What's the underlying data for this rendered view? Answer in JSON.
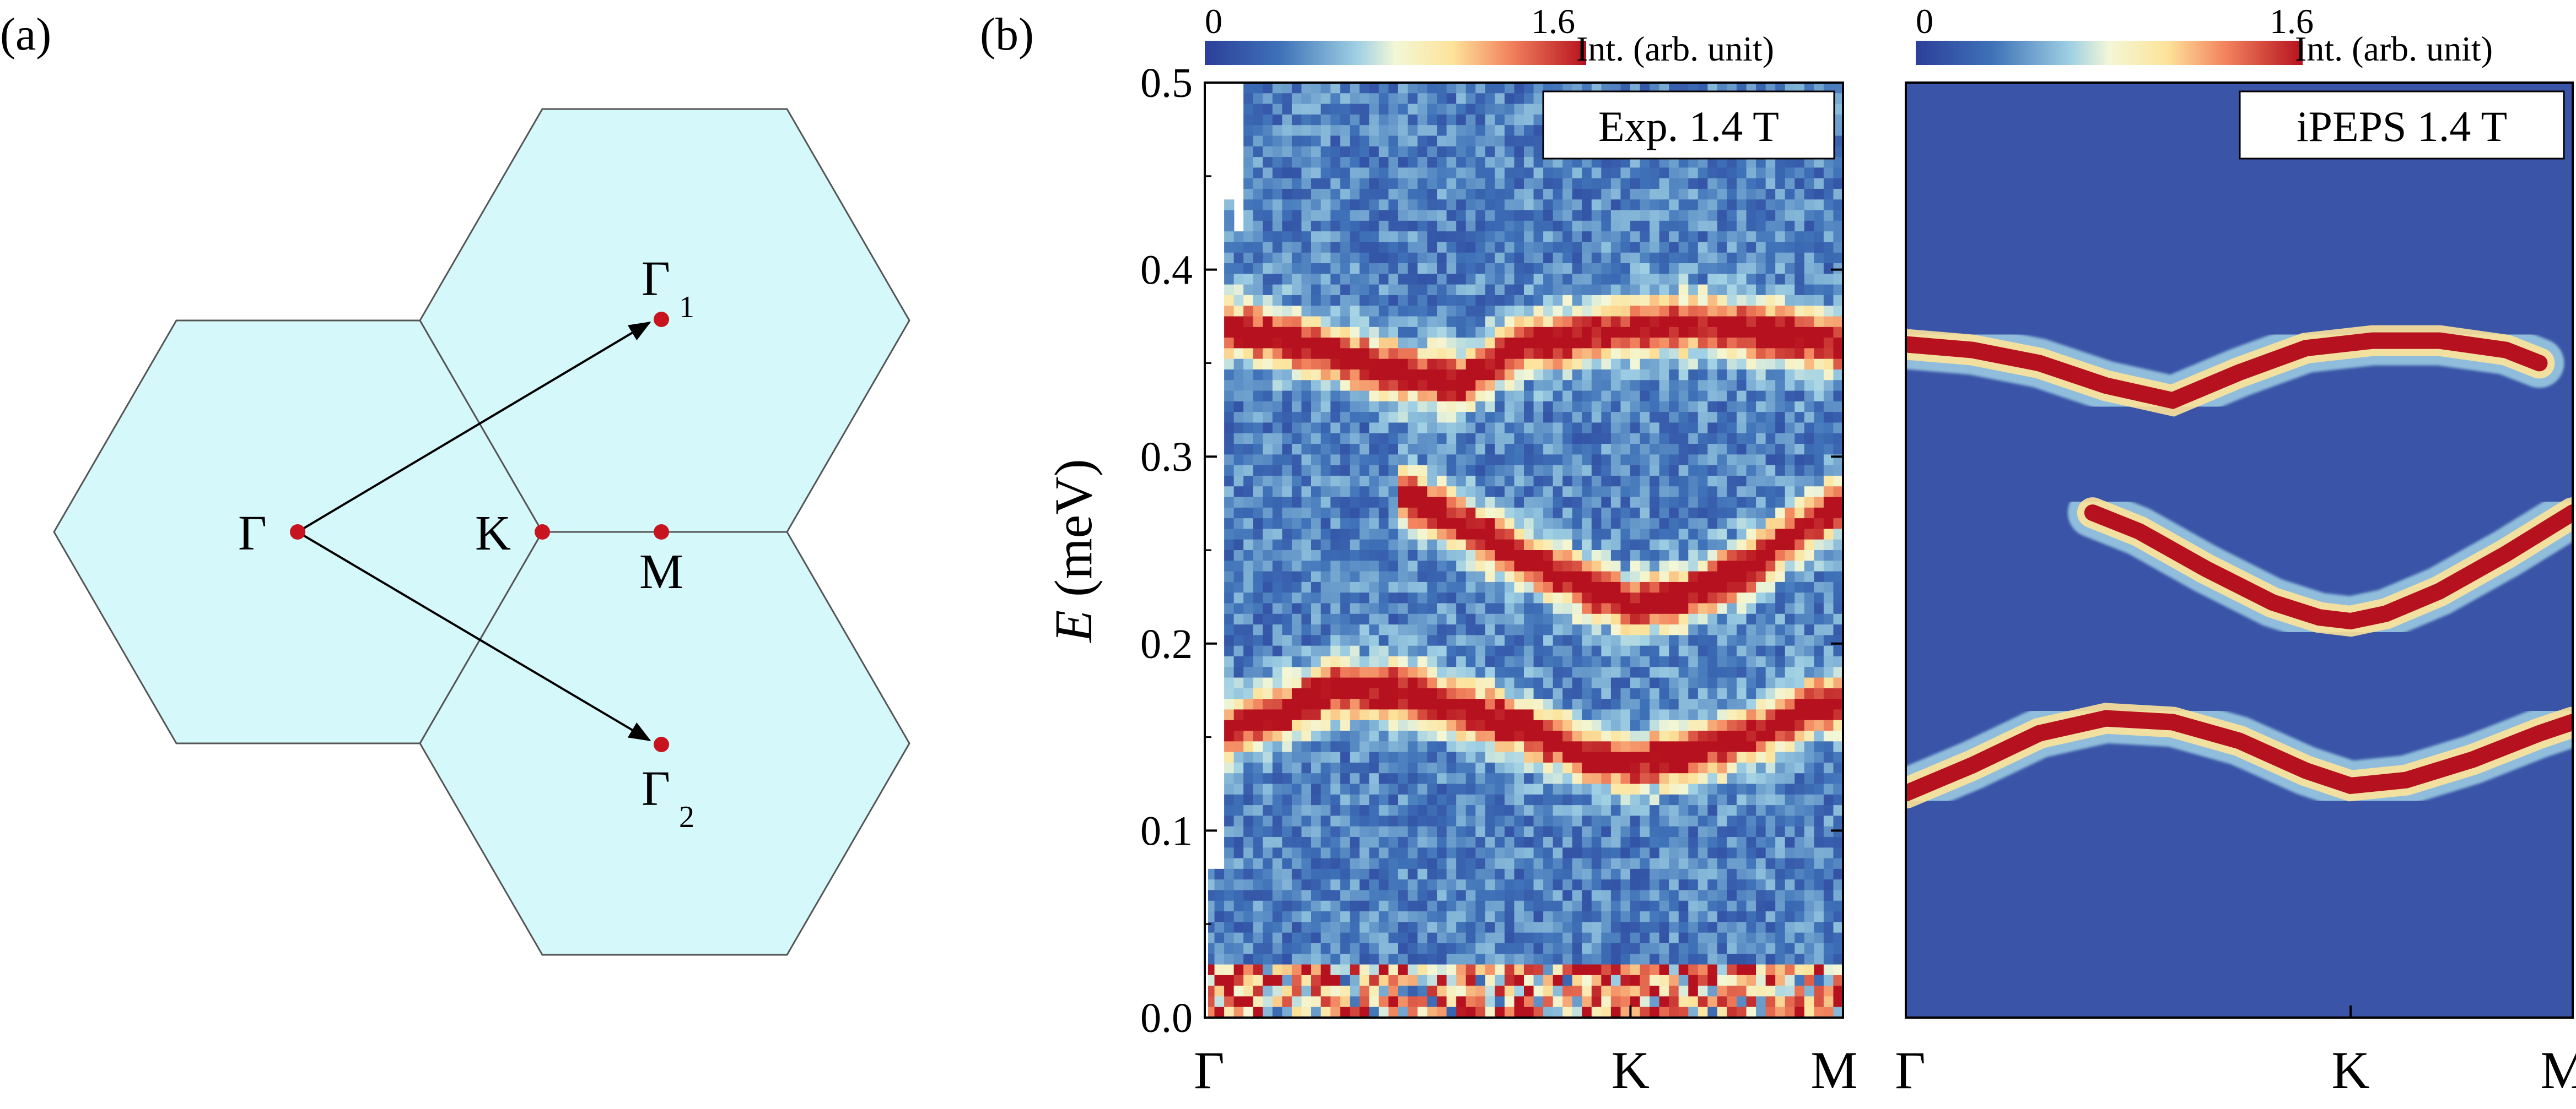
{
  "panel_a": {
    "label": "(a)",
    "points": {
      "gamma": "Γ",
      "k": "K",
      "m": "M",
      "gamma1": "Γ",
      "gamma1_sub": "1",
      "gamma2": "Γ",
      "gamma2_sub": "2"
    },
    "colors": {
      "hex_fill": "#d5f8fb",
      "hex_stroke": "#555555",
      "point": "#c8141e",
      "arrow": "#000000"
    }
  },
  "panel_b": {
    "label": "(b)"
  },
  "chart_data": [
    {
      "type": "heatmap",
      "title": "Exp.  1.4 T",
      "ylabel": "E (meV)",
      "ylabel_italic": "E",
      "ylabel_unit": " (meV)",
      "ylim": [
        0,
        0.5
      ],
      "yticks": [
        "0.0",
        "0.1",
        "0.2",
        "0.3",
        "0.4",
        "0.5"
      ],
      "xticks": [
        "Γ",
        "K",
        "M"
      ],
      "x_positions": [
        0,
        0.667,
        1
      ],
      "colorbar": {
        "min_label": "0",
        "max_label": "1.6",
        "label": "Int. (arb. unit)",
        "range": [
          0,
          1.6
        ]
      },
      "bands": [
        {
          "name": "upper",
          "x": [
            0,
            0.1,
            0.2,
            0.3,
            0.4,
            0.5,
            0.6,
            0.7,
            0.8,
            0.9,
            1.0
          ],
          "energy": [
            0.37,
            0.365,
            0.355,
            0.345,
            0.34,
            0.36,
            0.365,
            0.37,
            0.37,
            0.365,
            0.36
          ]
        },
        {
          "name": "middle",
          "x": [
            0.3,
            0.4,
            0.5,
            0.6,
            0.667,
            0.75,
            0.85,
            0.95,
            1.0
          ],
          "energy": [
            0.28,
            0.265,
            0.245,
            0.23,
            0.22,
            0.225,
            0.24,
            0.265,
            0.275
          ]
        },
        {
          "name": "lower",
          "x": [
            0,
            0.1,
            0.2,
            0.3,
            0.4,
            0.5,
            0.6,
            0.667,
            0.75,
            0.85,
            0.95,
            1.0
          ],
          "energy": [
            0.15,
            0.16,
            0.175,
            0.175,
            0.165,
            0.155,
            0.14,
            0.135,
            0.14,
            0.15,
            0.165,
            0.17
          ]
        }
      ]
    },
    {
      "type": "heatmap",
      "title": "iPEPS  1.4 T",
      "ylim": [
        0,
        0.5
      ],
      "xticks": [
        "Γ",
        "K",
        "M"
      ],
      "x_positions": [
        0,
        0.667,
        1
      ],
      "colorbar": {
        "min_label": "0",
        "max_label": "1.6",
        "label": "Int. (arb. unit)",
        "range": [
          0,
          1.6
        ]
      },
      "bands": [
        {
          "name": "upper",
          "x": [
            0,
            0.1,
            0.2,
            0.3,
            0.4,
            0.5,
            0.6,
            0.7,
            0.8,
            0.9,
            0.95
          ],
          "energy": [
            0.36,
            0.357,
            0.35,
            0.338,
            0.33,
            0.345,
            0.358,
            0.362,
            0.362,
            0.357,
            0.35
          ]
        },
        {
          "name": "middle",
          "x": [
            0.28,
            0.35,
            0.45,
            0.55,
            0.62,
            0.667,
            0.72,
            0.8,
            0.9,
            1.0
          ],
          "energy": [
            0.27,
            0.26,
            0.24,
            0.222,
            0.214,
            0.212,
            0.216,
            0.228,
            0.248,
            0.27
          ]
        },
        {
          "name": "lower",
          "x": [
            0,
            0.1,
            0.2,
            0.3,
            0.4,
            0.5,
            0.6,
            0.667,
            0.75,
            0.85,
            0.95,
            1.0
          ],
          "energy": [
            0.12,
            0.135,
            0.152,
            0.16,
            0.158,
            0.148,
            0.132,
            0.124,
            0.127,
            0.138,
            0.152,
            0.158
          ]
        }
      ]
    }
  ]
}
